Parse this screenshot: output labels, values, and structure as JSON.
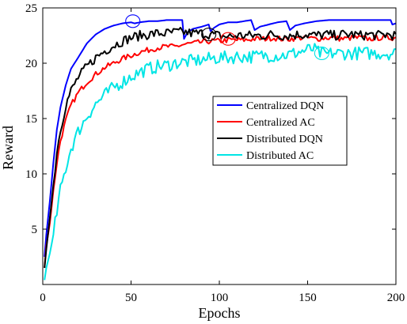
{
  "chart_data": {
    "type": "line",
    "xlabel": "Epochs",
    "ylabel": "Reward",
    "xlim": [
      0,
      200
    ],
    "ylim": [
      0,
      25
    ],
    "xticks": [
      0,
      50,
      100,
      150,
      200
    ],
    "yticks": [
      5,
      10,
      15,
      20,
      25
    ],
    "ytick_labels": [
      "5",
      "10",
      "15",
      "20",
      "25"
    ],
    "xtick_labels": [
      "0",
      "50",
      "100",
      "150",
      "200"
    ],
    "grid": false,
    "legend_position": "center-right",
    "series": [
      {
        "name": "Centralized DQN",
        "color": "#0000ff",
        "points": [
          [
            1,
            2.5
          ],
          [
            2,
            4.5
          ],
          [
            4,
            7.5
          ],
          [
            6,
            11
          ],
          [
            8,
            14
          ],
          [
            10,
            16
          ],
          [
            13,
            18
          ],
          [
            16,
            19.5
          ],
          [
            20,
            20.5
          ],
          [
            25,
            21.8
          ],
          [
            30,
            22.6
          ],
          [
            35,
            23.1
          ],
          [
            40,
            23.4
          ],
          [
            45,
            23.6
          ],
          [
            50,
            23.7
          ],
          [
            52,
            23.6
          ],
          [
            55,
            23.7
          ],
          [
            60,
            23.8
          ],
          [
            65,
            23.8
          ],
          [
            70,
            23.9
          ],
          [
            75,
            23.9
          ],
          [
            79,
            23.9
          ],
          [
            80,
            22.2
          ],
          [
            82,
            22.8
          ],
          [
            85,
            23.1
          ],
          [
            90,
            23.3
          ],
          [
            94,
            23.5
          ],
          [
            95,
            22.9
          ],
          [
            97,
            23.2
          ],
          [
            100,
            23.5
          ],
          [
            105,
            23.7
          ],
          [
            110,
            23.7
          ],
          [
            118,
            23.9
          ],
          [
            120,
            23.0
          ],
          [
            123,
            23.3
          ],
          [
            128,
            23.5
          ],
          [
            133,
            23.7
          ],
          [
            138,
            23.8
          ],
          [
            140,
            23.0
          ],
          [
            143,
            23.4
          ],
          [
            148,
            23.6
          ],
          [
            155,
            23.8
          ],
          [
            162,
            23.9
          ],
          [
            170,
            23.9
          ],
          [
            180,
            23.9
          ],
          [
            190,
            23.9
          ],
          [
            197,
            23.9
          ],
          [
            198,
            23.5
          ],
          [
            200,
            23.6
          ]
        ]
      },
      {
        "name": "Centralized AC",
        "color": "#ff0000",
        "points": [
          [
            1,
            1.5
          ],
          [
            2,
            3.5
          ],
          [
            4,
            5.5
          ],
          [
            6,
            8.5
          ],
          [
            8,
            11
          ],
          [
            10,
            13
          ],
          [
            13,
            14.8
          ],
          [
            16,
            16.2
          ],
          [
            20,
            17.3
          ],
          [
            25,
            18.3
          ],
          [
            30,
            19.0
          ],
          [
            35,
            19.6
          ],
          [
            40,
            20.0
          ],
          [
            45,
            20.4
          ],
          [
            50,
            20.7
          ],
          [
            55,
            21.0
          ],
          [
            60,
            21.2
          ],
          [
            65,
            21.4
          ],
          [
            70,
            21.5
          ],
          [
            75,
            21.5
          ],
          [
            80,
            21.7
          ],
          [
            85,
            21.8
          ],
          [
            90,
            21.9
          ],
          [
            95,
            22.0
          ],
          [
            100,
            22.0
          ],
          [
            105,
            22.1
          ],
          [
            110,
            22.1
          ],
          [
            115,
            22.1
          ],
          [
            120,
            22.2
          ],
          [
            125,
            22.2
          ],
          [
            130,
            22.3
          ],
          [
            135,
            22.2
          ],
          [
            140,
            22.2
          ],
          [
            145,
            22.3
          ],
          [
            150,
            22.3
          ],
          [
            155,
            22.2
          ],
          [
            160,
            22.3
          ],
          [
            165,
            22.3
          ],
          [
            170,
            22.2
          ],
          [
            175,
            22.3
          ],
          [
            180,
            22.3
          ],
          [
            185,
            22.2
          ],
          [
            190,
            22.3
          ],
          [
            195,
            22.3
          ],
          [
            200,
            22.3
          ]
        ]
      },
      {
        "name": "Distributed DQN",
        "color": "#000000",
        "points": [
          [
            1,
            1.5
          ],
          [
            2,
            3.2
          ],
          [
            4,
            6
          ],
          [
            6,
            9
          ],
          [
            8,
            12
          ],
          [
            10,
            14
          ],
          [
            13,
            16.2
          ],
          [
            16,
            17.5
          ],
          [
            20,
            18.7
          ],
          [
            25,
            19.7
          ],
          [
            30,
            20.5
          ],
          [
            35,
            21.1
          ],
          [
            40,
            21.6
          ],
          [
            45,
            22.0
          ],
          [
            50,
            22.3
          ],
          [
            55,
            22.5
          ],
          [
            60,
            22.6
          ],
          [
            65,
            22.7
          ],
          [
            70,
            22.7
          ],
          [
            75,
            22.8
          ],
          [
            80,
            22.8
          ],
          [
            85,
            22.7
          ],
          [
            90,
            22.7
          ],
          [
            95,
            22.6
          ],
          [
            100,
            22.5
          ],
          [
            105,
            22.4
          ],
          [
            110,
            22.5
          ],
          [
            115,
            22.5
          ],
          [
            120,
            22.5
          ],
          [
            125,
            22.5
          ],
          [
            130,
            22.6
          ],
          [
            135,
            22.5
          ],
          [
            140,
            22.5
          ],
          [
            145,
            22.6
          ],
          [
            150,
            22.6
          ],
          [
            155,
            22.5
          ],
          [
            160,
            22.6
          ],
          [
            165,
            22.5
          ],
          [
            170,
            22.6
          ],
          [
            175,
            22.6
          ],
          [
            180,
            22.5
          ],
          [
            185,
            22.6
          ],
          [
            190,
            22.5
          ],
          [
            195,
            22.6
          ],
          [
            200,
            22.5
          ]
        ]
      },
      {
        "name": "Distributed AC",
        "color": "#00e5e5",
        "points": [
          [
            1,
            0.4
          ],
          [
            2,
            1.5
          ],
          [
            4,
            2.8
          ],
          [
            6,
            4.5
          ],
          [
            8,
            6.5
          ],
          [
            10,
            8.5
          ],
          [
            13,
            10.5
          ],
          [
            16,
            12.3
          ],
          [
            20,
            13.8
          ],
          [
            25,
            15.2
          ],
          [
            30,
            16.3
          ],
          [
            35,
            17.1
          ],
          [
            40,
            17.8
          ],
          [
            45,
            18.3
          ],
          [
            50,
            18.8
          ],
          [
            55,
            19.2
          ],
          [
            60,
            19.5
          ],
          [
            65,
            19.7
          ],
          [
            70,
            19.8
          ],
          [
            75,
            20.0
          ],
          [
            80,
            20.1
          ],
          [
            85,
            20.2
          ],
          [
            90,
            20.3
          ],
          [
            95,
            20.4
          ],
          [
            100,
            20.5
          ],
          [
            105,
            20.5
          ],
          [
            110,
            20.6
          ],
          [
            115,
            20.6
          ],
          [
            120,
            20.6
          ],
          [
            125,
            20.7
          ],
          [
            130,
            20.7
          ],
          [
            135,
            20.7
          ],
          [
            140,
            20.8
          ],
          [
            145,
            21.0
          ],
          [
            150,
            21.2
          ],
          [
            153,
            21.3
          ],
          [
            157,
            20.9
          ],
          [
            160,
            20.8
          ],
          [
            165,
            20.9
          ],
          [
            170,
            20.9
          ],
          [
            175,
            20.9
          ],
          [
            180,
            20.9
          ],
          [
            185,
            20.9
          ],
          [
            190,
            20.9
          ],
          [
            195,
            20.9
          ],
          [
            200,
            20.9
          ]
        ]
      }
    ],
    "noise": [
      0.0,
      0.25,
      0.45,
      0.6
    ],
    "annotations": [
      {
        "type": "ellipse",
        "x": 51,
        "y": 23.8,
        "color": "#0000ff"
      },
      {
        "type": "ellipse",
        "x": 94,
        "y": 22.6,
        "color": "#000000"
      },
      {
        "type": "ellipse",
        "x": 105,
        "y": 22.2,
        "color": "#ff0000"
      },
      {
        "type": "ellipse",
        "x": 158,
        "y": 20.9,
        "color": "#00e5e5"
      }
    ]
  }
}
